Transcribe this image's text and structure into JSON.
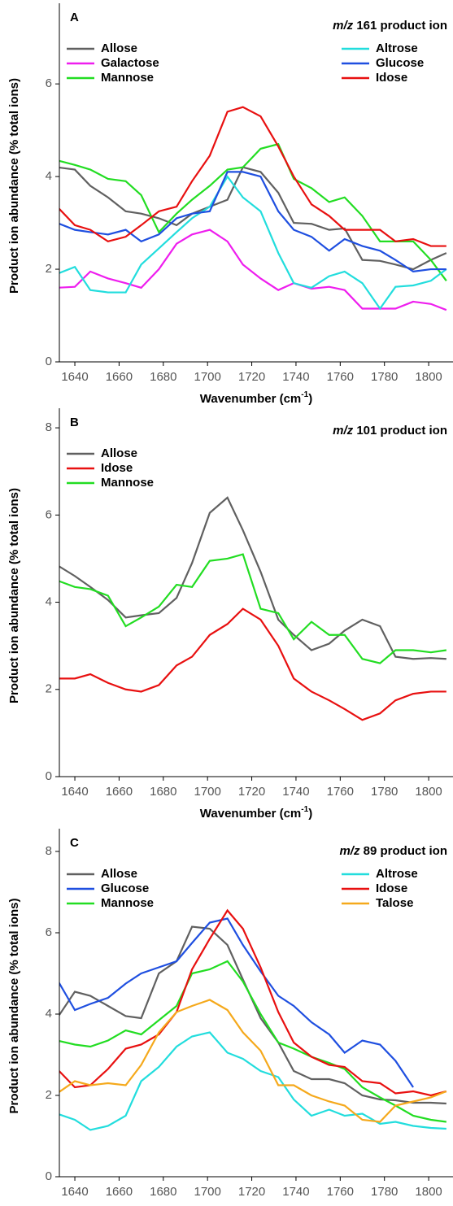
{
  "chart_data": [
    {
      "type": "line",
      "panel": "A",
      "title_italic": "m/z",
      "title": "161 product ion",
      "xlabel": "Wavenumber (cm",
      "xlabel_sup": "-1",
      "xlabel_end": ")",
      "ylabel": "Product ion abundance (% total ions)",
      "xlim": [
        1633,
        1811
      ],
      "ylim": [
        0,
        7.6
      ],
      "xticks": [
        1640,
        1660,
        1680,
        1700,
        1720,
        1740,
        1760,
        1780,
        1800
      ],
      "yticks": [
        0,
        2,
        4,
        6
      ],
      "legend_columns": 2,
      "x": [
        1632,
        1640,
        1647,
        1655,
        1663,
        1670,
        1678,
        1686,
        1693,
        1701,
        1709,
        1716,
        1724,
        1732,
        1739,
        1747,
        1755,
        1762,
        1770,
        1778,
        1785,
        1793,
        1801,
        1808
      ],
      "series": [
        {
          "name": "Allose",
          "color": "#606060",
          "values": [
            4.2,
            4.15,
            3.8,
            3.55,
            3.25,
            3.2,
            3.1,
            2.95,
            3.2,
            3.35,
            3.5,
            4.2,
            4.1,
            3.65,
            3.0,
            2.98,
            2.85,
            2.88,
            2.2,
            2.18,
            2.1,
            2.0,
            2.2,
            2.35
          ]
        },
        {
          "name": "Galactose",
          "color": "#ee1eee",
          "values": [
            1.6,
            1.62,
            1.95,
            1.8,
            1.7,
            1.6,
            2.0,
            2.55,
            2.75,
            2.85,
            2.6,
            2.1,
            1.8,
            1.55,
            1.7,
            1.58,
            1.62,
            1.55,
            1.15,
            1.15,
            1.15,
            1.3,
            1.25,
            1.12
          ]
        },
        {
          "name": "Mannose",
          "color": "#22dd22",
          "values": [
            4.35,
            4.25,
            4.15,
            3.95,
            3.9,
            3.6,
            2.8,
            3.2,
            3.5,
            3.8,
            4.15,
            4.2,
            4.6,
            4.7,
            3.95,
            3.75,
            3.45,
            3.55,
            3.15,
            2.6,
            2.6,
            2.6,
            2.2,
            1.75
          ]
        },
        {
          "name": "Altrose",
          "color": "#22dddd",
          "values": [
            1.9,
            2.05,
            1.55,
            1.5,
            1.5,
            2.1,
            2.45,
            2.8,
            3.1,
            3.35,
            4.0,
            3.55,
            3.25,
            2.35,
            1.7,
            1.6,
            1.85,
            1.95,
            1.7,
            1.15,
            1.62,
            1.65,
            1.75,
            2.0
          ]
        },
        {
          "name": "Glucose",
          "color": "#1f4fe0",
          "values": [
            3.0,
            2.85,
            2.8,
            2.75,
            2.85,
            2.6,
            2.75,
            3.1,
            3.2,
            3.25,
            4.1,
            4.1,
            4.0,
            3.25,
            2.85,
            2.7,
            2.4,
            2.65,
            2.5,
            2.4,
            2.2,
            1.95,
            2.0,
            2.0
          ]
        },
        {
          "name": "Idose",
          "color": "#e81010",
          "values": [
            3.35,
            2.95,
            2.85,
            2.6,
            2.7,
            2.95,
            3.25,
            3.35,
            3.9,
            4.45,
            5.4,
            5.5,
            5.3,
            4.65,
            4.0,
            3.4,
            3.15,
            2.85,
            2.85,
            2.85,
            2.6,
            2.65,
            2.5,
            2.5
          ]
        }
      ]
    },
    {
      "type": "line",
      "panel": "B",
      "title_italic": "m/z",
      "title": "101 product ion",
      "xlabel": "Wavenumber (cm",
      "xlabel_sup": "-1",
      "xlabel_end": ")",
      "ylabel": "Product ion abundance (% total ions)",
      "xlim": [
        1633,
        1811
      ],
      "ylim": [
        0,
        8.3
      ],
      "xticks": [
        1640,
        1660,
        1680,
        1700,
        1720,
        1740,
        1760,
        1780,
        1800
      ],
      "yticks": [
        0,
        2,
        4,
        6,
        8
      ],
      "legend_columns": 1,
      "x": [
        1632,
        1640,
        1647,
        1655,
        1663,
        1670,
        1678,
        1686,
        1693,
        1701,
        1709,
        1716,
        1724,
        1732,
        1739,
        1747,
        1755,
        1762,
        1770,
        1778,
        1785,
        1793,
        1801,
        1808
      ],
      "series": [
        {
          "name": "Allose",
          "color": "#606060",
          "values": [
            4.85,
            4.6,
            4.35,
            4.05,
            3.65,
            3.7,
            3.75,
            4.1,
            4.9,
            6.05,
            6.4,
            5.65,
            4.7,
            3.6,
            3.25,
            2.9,
            3.05,
            3.35,
            3.6,
            3.45,
            2.75,
            2.7,
            2.72,
            2.7
          ]
        },
        {
          "name": "Idose",
          "color": "#e81010",
          "values": [
            2.25,
            2.25,
            2.35,
            2.15,
            2.0,
            1.95,
            2.1,
            2.55,
            2.75,
            3.25,
            3.5,
            3.85,
            3.6,
            3.0,
            2.25,
            1.95,
            1.75,
            1.55,
            1.3,
            1.45,
            1.75,
            1.9,
            1.95,
            1.95
          ]
        },
        {
          "name": "Mannose",
          "color": "#22dd22",
          "values": [
            4.5,
            4.35,
            4.3,
            4.15,
            3.45,
            3.65,
            3.9,
            4.4,
            4.35,
            4.95,
            5.0,
            5.1,
            3.85,
            3.75,
            3.15,
            3.55,
            3.25,
            3.25,
            2.7,
            2.6,
            2.9,
            2.9,
            2.85,
            2.9
          ]
        }
      ]
    },
    {
      "type": "line",
      "panel": "C",
      "title_italic": "m/z",
      "title": "89 product ion",
      "xlabel": "Wavenumber (cm",
      "xlabel_sup": "-1",
      "xlabel_end": ")",
      "ylabel": "Product ion abundance (% total ions)",
      "xlim": [
        1633,
        1811
      ],
      "ylim": [
        0,
        8.4
      ],
      "xticks": [
        1640,
        1660,
        1680,
        1700,
        1720,
        1740,
        1760,
        1780,
        1800
      ],
      "yticks": [
        0,
        2,
        4,
        6,
        8
      ],
      "legend_columns": 2,
      "x": [
        1632,
        1640,
        1647,
        1655,
        1663,
        1670,
        1678,
        1686,
        1693,
        1701,
        1709,
        1716,
        1724,
        1732,
        1739,
        1747,
        1755,
        1762,
        1770,
        1778,
        1785,
        1793,
        1801,
        1808
      ],
      "series": [
        {
          "name": "Allose",
          "color": "#606060",
          "values": [
            3.9,
            4.55,
            4.45,
            4.2,
            3.95,
            3.9,
            5.0,
            5.3,
            6.15,
            6.1,
            5.7,
            4.85,
            3.9,
            3.3,
            2.6,
            2.4,
            2.4,
            2.3,
            2.0,
            1.9,
            1.88,
            1.82,
            1.82,
            1.8
          ]
        },
        {
          "name": "Glucose",
          "color": "#1f4fe0",
          "values": [
            4.85,
            4.1,
            4.25,
            4.4,
            4.75,
            5.0,
            5.15,
            5.3,
            5.75,
            6.25,
            6.35,
            5.7,
            5.05,
            4.45,
            4.2,
            3.8,
            3.5,
            3.05,
            3.35,
            3.25,
            2.85,
            2.2,
            null,
            null
          ]
        },
        {
          "name": "Mannose",
          "color": "#22dd22",
          "values": [
            3.35,
            3.25,
            3.2,
            3.35,
            3.6,
            3.5,
            3.85,
            4.2,
            5.0,
            5.1,
            5.3,
            4.8,
            4.0,
            3.3,
            3.15,
            2.95,
            2.8,
            2.65,
            2.2,
            1.95,
            1.75,
            1.5,
            1.4,
            1.35
          ]
        },
        {
          "name": "Altrose",
          "color": "#22dddd",
          "values": [
            1.55,
            1.4,
            1.15,
            1.25,
            1.5,
            2.35,
            2.7,
            3.2,
            3.45,
            3.55,
            3.05,
            2.9,
            2.6,
            2.45,
            1.9,
            1.5,
            1.65,
            1.5,
            1.55,
            1.3,
            1.35,
            1.25,
            1.2,
            1.18
          ]
        },
        {
          "name": "Idose",
          "color": "#e81010",
          "values": [
            2.65,
            2.2,
            2.25,
            2.65,
            3.15,
            3.25,
            3.5,
            4.05,
            5.1,
            5.85,
            6.55,
            6.1,
            5.15,
            4.05,
            3.3,
            2.95,
            2.75,
            2.7,
            2.35,
            2.3,
            2.05,
            2.1,
            2.0,
            2.1
          ]
        },
        {
          "name": "Talose",
          "color": "#f5a91c",
          "values": [
            2.05,
            2.35,
            2.25,
            2.3,
            2.25,
            2.75,
            3.55,
            4.05,
            4.2,
            4.35,
            4.1,
            3.55,
            3.1,
            2.25,
            2.25,
            2.0,
            1.85,
            1.75,
            1.4,
            1.35,
            1.75,
            1.85,
            1.95,
            2.1
          ]
        }
      ]
    }
  ]
}
